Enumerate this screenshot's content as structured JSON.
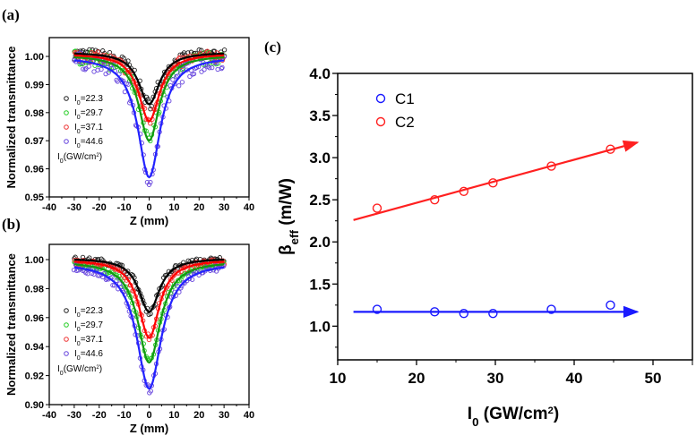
{
  "chart_data": [
    {
      "panel_label": "(a)",
      "type": "scatter",
      "xlabel": "Z (mm)",
      "ylabel": "Normalized transmittance",
      "xlim": [
        -40,
        40
      ],
      "ylim": [
        0.95,
        1.0067
      ],
      "xticks": [
        "-40",
        "-30",
        "-20",
        "-10",
        "0",
        "10",
        "20",
        "30",
        "40"
      ],
      "yticks": [
        "0.95",
        "0.96",
        "0.97",
        "0.98",
        "0.99",
        "1.00"
      ],
      "legend_unit": "I0(GW/cm2)",
      "z_range": [
        -30,
        30
      ],
      "series": [
        {
          "name": "I0=22.3",
          "intensity": "22.3",
          "color": "#222222",
          "fit_color": "#000000",
          "min_transmittance": 0.983,
          "baseline": 1.0015,
          "width_mm": 5,
          "noise": 0.002
        },
        {
          "name": "I0=29.7",
          "intensity": "29.7",
          "color": "#22cc22",
          "fit_color": "#119911",
          "min_transmittance": 0.97,
          "baseline": 1.0005,
          "width_mm": 5,
          "noise": 0.0025
        },
        {
          "name": "I0=37.1",
          "intensity": "37.1",
          "color": "#ee3333",
          "fit_color": "#ff0000",
          "min_transmittance": 0.977,
          "baseline": 1.001,
          "width_mm": 5,
          "noise": 0.002
        },
        {
          "name": "I0=44.6",
          "intensity": "44.6",
          "color": "#6644dd",
          "fit_color": "#2222ff",
          "min_transmittance": 0.957,
          "baseline": 1.0,
          "width_mm": 5.5,
          "noise": 0.003
        }
      ]
    },
    {
      "panel_label": "(b)",
      "type": "scatter",
      "xlabel": "Z (mm)",
      "ylabel": "Normalized transmittance",
      "xlim": [
        -40,
        40
      ],
      "ylim": [
        0.9,
        1.0105
      ],
      "xticks": [
        "-40",
        "-30",
        "-20",
        "-10",
        "0",
        "10",
        "20",
        "30",
        "40"
      ],
      "yticks": [
        "0.90",
        "0.92",
        "0.94",
        "0.96",
        "0.98",
        "1.00"
      ],
      "legend_unit": "I0(GW/cm2)",
      "z_range": [
        -30,
        30
      ],
      "series": [
        {
          "name": "I0=22.3",
          "intensity": "22.3",
          "color": "#222222",
          "fit_color": "#000000",
          "min_transmittance": 0.964,
          "baseline": 1.001,
          "width_mm": 5,
          "noise": 0.002
        },
        {
          "name": "I0=29.7",
          "intensity": "29.7",
          "color": "#22cc22",
          "fit_color": "#119911",
          "min_transmittance": 0.929,
          "baseline": 0.999,
          "width_mm": 5.5,
          "noise": 0.002
        },
        {
          "name": "I0=37.1",
          "intensity": "37.1",
          "color": "#ee3333",
          "fit_color": "#ff0000",
          "min_transmittance": 0.946,
          "baseline": 1.0,
          "width_mm": 5,
          "noise": 0.002
        },
        {
          "name": "I0=44.6",
          "intensity": "44.6",
          "color": "#6644dd",
          "fit_color": "#2222ff",
          "min_transmittance": 0.911,
          "baseline": 0.998,
          "width_mm": 6,
          "noise": 0.003
        }
      ]
    },
    {
      "panel_label": "(c)",
      "type": "scatter",
      "xlabel": "I0 (GW/cm2)",
      "ylabel": "βeff (m/W)",
      "xlim": [
        10,
        55
      ],
      "ylim": [
        0.6,
        4.0
      ],
      "xticks": [
        "10",
        "20",
        "30",
        "40",
        "50"
      ],
      "yticks": [
        "1.0",
        "1.5",
        "2.0",
        "2.5",
        "3.0",
        "3.5",
        "4.0"
      ],
      "legend_position": "top-left",
      "series": [
        {
          "name": "C1",
          "color": "#1a1aff",
          "x": [
            15,
            22.3,
            26,
            29.7,
            37.1,
            44.6
          ],
          "y": [
            1.2,
            1.17,
            1.15,
            1.15,
            1.2,
            1.25
          ],
          "trend_arrow": {
            "from": [
              12,
              1.17
            ],
            "to": [
              48,
              1.17
            ]
          }
        },
        {
          "name": "C2",
          "color": "#ff2020",
          "x": [
            15,
            22.3,
            26,
            29.7,
            37.1,
            44.6
          ],
          "y": [
            2.4,
            2.5,
            2.6,
            2.7,
            2.9,
            3.1
          ],
          "trend_arrow": {
            "from": [
              12,
              2.26
            ],
            "to": [
              48,
              3.18
            ]
          }
        }
      ]
    }
  ]
}
